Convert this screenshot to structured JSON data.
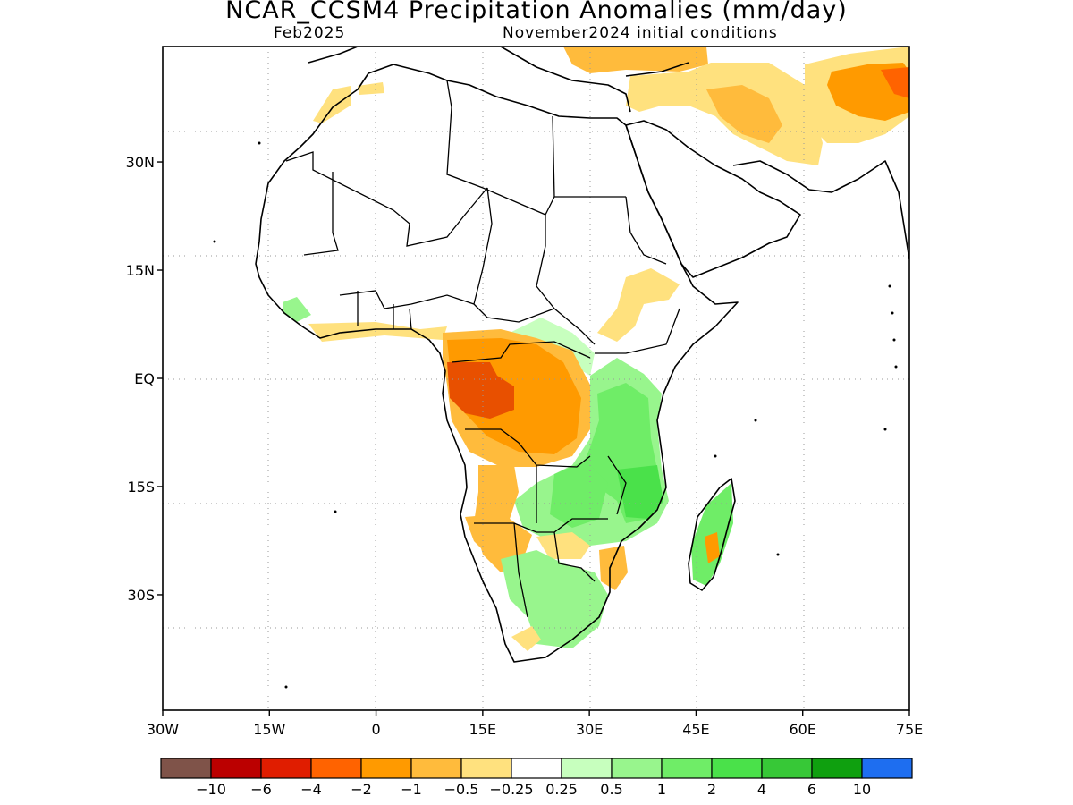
{
  "title": "NCAR_CCSM4 Precipitation Anomalies (mm/day)",
  "valid_month": "Feb2025",
  "initial_conditions": "November2024 initial conditions",
  "map": {
    "lon_range": [
      -30,
      75
    ],
    "lat_range": [
      -46,
      46
    ],
    "grid": "dotted",
    "lon_ticks": [
      {
        "value": -30,
        "label": "30W"
      },
      {
        "value": -15,
        "label": "15W"
      },
      {
        "value": 0,
        "label": "0"
      },
      {
        "value": 15,
        "label": "15E"
      },
      {
        "value": 30,
        "label": "30E"
      },
      {
        "value": 45,
        "label": "45E"
      },
      {
        "value": 60,
        "label": "60E"
      },
      {
        "value": 75,
        "label": "75E"
      }
    ],
    "lat_ticks": [
      {
        "value": 30,
        "label": "30N"
      },
      {
        "value": 15,
        "label": "15N"
      },
      {
        "value": 0,
        "label": "EQ"
      },
      {
        "value": -15,
        "label": "15S"
      },
      {
        "value": -30,
        "label": "30S"
      }
    ]
  },
  "colorbar": {
    "colors": [
      "#7f5349",
      "#bb0000",
      "#e01d00",
      "#ff6300",
      "#ff9a00",
      "#ffbb3c",
      "#ffe17e",
      "#ffffff",
      "#c7ffbe",
      "#98f58d",
      "#6fed67",
      "#4ae14a",
      "#37c837",
      "#0fa00f",
      "#1e6ef0"
    ],
    "labels": [
      "−10",
      "−6",
      "−4",
      "−2",
      "−1",
      "−0.5",
      "−0.25",
      "0.25",
      "0.5",
      "1",
      "2",
      "4",
      "6",
      "10"
    ]
  },
  "anomaly_regions": [
    {
      "name": "gabon-dry-core",
      "color": "#e85000"
    },
    {
      "name": "congo-dry",
      "color": "#ff9a00"
    },
    {
      "name": "east-africa-wet",
      "color": "#6fed67"
    },
    {
      "name": "madagascar-wet",
      "color": "#6fed67"
    },
    {
      "name": "angola-dry",
      "color": "#ffbb3c"
    },
    {
      "name": "middle-east-dry",
      "color": "#ffe17e"
    },
    {
      "name": "afghanistan-dry",
      "color": "#ff9a00"
    }
  ]
}
